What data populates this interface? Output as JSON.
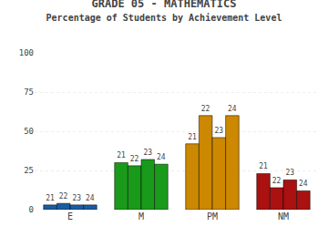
{
  "chart_data": {
    "type": "bar",
    "title": "GRADE 05 - MATHEMATICS",
    "subtitle": "Percentage of Students by Achievement Level",
    "categories": [
      "E",
      "M",
      "PM",
      "NM"
    ],
    "series": [
      {
        "name": "21",
        "values": [
          3,
          30,
          42,
          23
        ],
        "colors": [
          "#1a5ca0",
          "#1a9a1a",
          "#cc8800",
          "#aa1111"
        ]
      },
      {
        "name": "22",
        "values": [
          4,
          28,
          60,
          14
        ],
        "colors": [
          "#1a5ca0",
          "#1a9a1a",
          "#cc8800",
          "#aa1111"
        ]
      },
      {
        "name": "23",
        "values": [
          3,
          32,
          46,
          19
        ],
        "colors": [
          "#1a5ca0",
          "#1a9a1a",
          "#cc8800",
          "#aa1111"
        ]
      },
      {
        "name": "24",
        "values": [
          3,
          29,
          60,
          12
        ],
        "colors": [
          "#1a5ca0",
          "#1a9a1a",
          "#cc8800",
          "#aa1111"
        ]
      }
    ],
    "ylim": [
      0,
      100
    ],
    "yticks": [
      0,
      25,
      50,
      75,
      100
    ],
    "grid": true
  }
}
